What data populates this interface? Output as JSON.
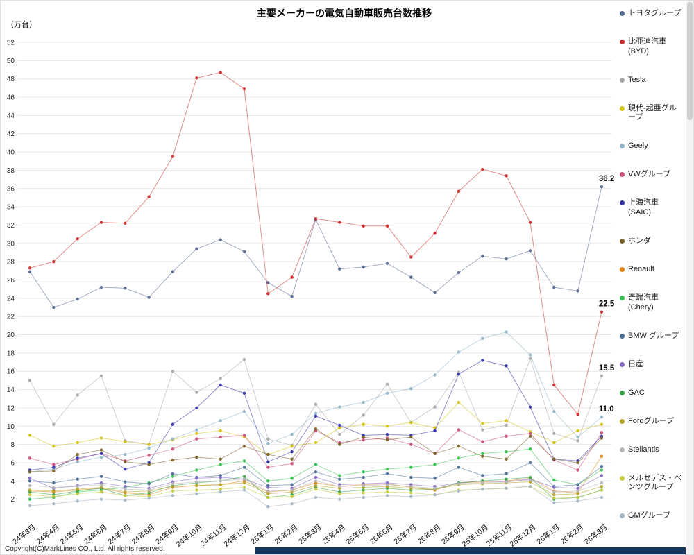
{
  "title": "主要メーカーの電気自動車販売台数推移",
  "y_axis_unit": "（万台）",
  "footer": {
    "copyright": "Copyright(C)MarkLines CO., Ltd. All rights reserved."
  },
  "chart_data": {
    "type": "line",
    "title": "主要メーカーの電気自動車販売台数推移",
    "ylabel": "（万台）",
    "xlabel": "",
    "ylim": [
      0,
      52
    ],
    "ytick_step": 2,
    "grid": true,
    "legend_position": "right",
    "categories": [
      "24年3月",
      "24年4月",
      "24年5月",
      "24年6月",
      "24年7月",
      "24年8月",
      "24年9月",
      "24年10月",
      "24年11月",
      "24年12月",
      "25年1月",
      "25年2月",
      "25年3月",
      "25年4月",
      "25年5月",
      "25年6月",
      "25年7月",
      "25年8月",
      "25年9月",
      "25年10月",
      "25年11月",
      "25年12月",
      "26年1月",
      "26年2月",
      "26年3月"
    ],
    "series": [
      {
        "name": "トヨタグループ",
        "color": "#55688f",
        "values": [
          26.9,
          23.0,
          23.9,
          25.2,
          25.1,
          24.1,
          26.9,
          29.4,
          30.4,
          29.1,
          25.7,
          24.2,
          32.6,
          27.2,
          27.4,
          27.8,
          26.3,
          24.6,
          26.8,
          28.6,
          28.3,
          29.2,
          25.2,
          24.8,
          36.2
        ]
      },
      {
        "name": "比亜迪汽車 (BYD)",
        "color": "#cc2b2b",
        "values": [
          27.3,
          28.0,
          30.5,
          32.3,
          32.2,
          35.1,
          39.5,
          48.1,
          48.7,
          46.9,
          24.5,
          26.3,
          32.7,
          32.3,
          31.9,
          31.9,
          28.5,
          31.1,
          35.7,
          38.1,
          37.4,
          32.3,
          14.5,
          11.3,
          22.5
        ]
      },
      {
        "name": "Tesla",
        "color": "#a8a8a8",
        "values": [
          15.0,
          10.2,
          13.4,
          15.5,
          8.4,
          8.0,
          16.0,
          13.7,
          15.2,
          17.3,
          8.6,
          7.9,
          12.4,
          9.1,
          11.2,
          14.6,
          10.4,
          12.1,
          15.9,
          9.6,
          10.1,
          17.4,
          9.2,
          8.4,
          15.5
        ]
      },
      {
        "name": "現代-起亜グループ",
        "color": "#d6c216",
        "values": [
          9.0,
          7.8,
          8.2,
          8.7,
          8.3,
          8.0,
          8.5,
          9.2,
          9.5,
          8.8,
          6.9,
          7.8,
          8.2,
          9.8,
          10.2,
          10.0,
          10.4,
          9.8,
          12.6,
          10.3,
          10.6,
          9.4,
          8.2,
          9.5,
          10.2
        ]
      },
      {
        "name": "Geely",
        "color": "#8fb5c9",
        "values": [
          5.0,
          5.3,
          6.1,
          6.6,
          6.9,
          7.6,
          8.6,
          9.6,
          10.6,
          11.6,
          8.1,
          9.1,
          11.4,
          12.1,
          12.6,
          13.6,
          14.1,
          15.6,
          18.1,
          19.6,
          20.3,
          17.8,
          11.6,
          8.8,
          11.0
        ]
      },
      {
        "name": "VWグループ",
        "color": "#c94f7c",
        "values": [
          6.5,
          5.8,
          6.4,
          7.0,
          6.2,
          6.8,
          7.5,
          8.6,
          8.8,
          9.0,
          5.5,
          5.9,
          9.5,
          8.2,
          8.5,
          8.7,
          8.0,
          7.0,
          9.6,
          8.3,
          8.9,
          9.2,
          6.3,
          5.2,
          9.3
        ]
      },
      {
        "name": "上海汽車 (SAIC)",
        "color": "#3333aa",
        "values": [
          5.2,
          5.5,
          6.5,
          7.0,
          5.3,
          6.0,
          10.2,
          12.0,
          14.5,
          13.6,
          6.1,
          7.2,
          11.1,
          10.1,
          9.0,
          9.1,
          9.0,
          9.5,
          15.7,
          17.2,
          16.6,
          12.1,
          6.4,
          6.2,
          8.9
        ]
      },
      {
        "name": "ホンダ",
        "color": "#7a6128",
        "values": [
          5.0,
          5.1,
          6.9,
          7.4,
          6.1,
          5.8,
          6.3,
          6.6,
          6.4,
          7.8,
          6.9,
          6.4,
          9.7,
          8.0,
          8.8,
          8.5,
          8.8,
          7.0,
          7.8,
          6.7,
          6.4,
          8.9,
          6.4,
          6.0,
          8.7
        ]
      },
      {
        "name": "Renault",
        "color": "#e2871f",
        "values": [
          2.9,
          2.8,
          3.0,
          3.2,
          2.7,
          2.5,
          3.3,
          3.5,
          3.6,
          4.0,
          2.8,
          3.0,
          3.8,
          3.4,
          3.6,
          3.7,
          3.3,
          3.0,
          3.8,
          3.9,
          4.0,
          4.3,
          2.9,
          2.7,
          6.7
        ]
      },
      {
        "name": "奇瑞汽車 (Chery)",
        "color": "#35c24f",
        "values": [
          2.0,
          2.2,
          2.8,
          3.0,
          3.3,
          3.8,
          4.5,
          5.2,
          5.8,
          6.2,
          4.0,
          4.3,
          5.8,
          4.6,
          5.0,
          5.3,
          5.5,
          5.8,
          6.5,
          7.0,
          7.2,
          7.5,
          4.1,
          3.6,
          5.2
        ]
      },
      {
        "name": "BMW グループ",
        "color": "#4a6e96",
        "values": [
          4.0,
          3.8,
          4.2,
          4.5,
          3.9,
          3.7,
          4.8,
          4.4,
          4.6,
          5.5,
          3.5,
          3.6,
          5.0,
          4.2,
          4.4,
          4.8,
          4.4,
          4.3,
          5.5,
          4.6,
          4.8,
          6.0,
          3.4,
          3.6,
          5.6
        ]
      },
      {
        "name": "日産",
        "color": "#8468c4",
        "values": [
          4.3,
          3.2,
          3.5,
          3.8,
          3.4,
          3.2,
          3.9,
          4.3,
          4.4,
          4.2,
          3.3,
          3.2,
          4.4,
          3.6,
          3.7,
          3.8,
          3.6,
          3.4,
          3.8,
          4.0,
          3.9,
          4.2,
          3.3,
          3.2,
          4.6
        ]
      },
      {
        "name": "GAC",
        "color": "#3aa547",
        "values": [
          2.8,
          2.5,
          2.9,
          3.2,
          2.4,
          2.7,
          3.5,
          3.8,
          4.0,
          4.5,
          2.2,
          2.5,
          3.3,
          2.8,
          3.0,
          3.2,
          3.0,
          3.1,
          3.8,
          4.0,
          4.2,
          4.4,
          2.0,
          2.2,
          3.0
        ]
      },
      {
        "name": "Fordグループ",
        "color": "#b5a227",
        "values": [
          3.0,
          2.9,
          3.1,
          3.3,
          2.8,
          2.9,
          3.4,
          3.5,
          3.6,
          3.8,
          2.6,
          2.8,
          3.5,
          3.2,
          3.3,
          3.4,
          3.2,
          3.1,
          3.6,
          3.7,
          3.8,
          3.9,
          2.5,
          2.6,
          3.4
        ]
      },
      {
        "name": "Stellantis",
        "color": "#b5b5b5",
        "values": [
          3.5,
          3.3,
          3.4,
          3.6,
          3.1,
          3.0,
          3.7,
          3.9,
          4.0,
          4.2,
          2.9,
          3.0,
          4.0,
          3.4,
          3.5,
          3.6,
          3.4,
          3.2,
          3.7,
          3.8,
          3.9,
          4.1,
          2.8,
          2.9,
          3.8
        ]
      },
      {
        "name": "メルセデス・ベンツグループ",
        "color": "#c3cc3f",
        "values": [
          2.5,
          2.3,
          2.6,
          2.8,
          2.4,
          2.3,
          2.9,
          3.0,
          3.1,
          3.3,
          2.2,
          2.3,
          3.1,
          2.6,
          2.7,
          2.8,
          2.7,
          2.5,
          3.0,
          3.1,
          3.2,
          3.4,
          2.1,
          2.2,
          3.0
        ]
      },
      {
        "name": "GMグループ",
        "color": "#a4b7c6",
        "values": [
          1.3,
          1.5,
          1.8,
          2.0,
          1.9,
          2.1,
          2.4,
          2.6,
          2.8,
          3.0,
          1.2,
          1.5,
          2.2,
          2.0,
          2.2,
          2.4,
          2.3,
          2.5,
          2.9,
          3.1,
          3.2,
          3.4,
          1.6,
          1.8,
          2.2
        ]
      }
    ],
    "annotations": [
      {
        "text": "36.2",
        "series": "トヨタグループ",
        "value": 36.2
      },
      {
        "text": "22.5",
        "series": "比亜迪汽車 (BYD)",
        "value": 22.5
      },
      {
        "text": "15.5",
        "series": "Tesla",
        "value": 15.5
      },
      {
        "text": "11.0",
        "series": "Geely",
        "value": 11.0
      }
    ]
  }
}
